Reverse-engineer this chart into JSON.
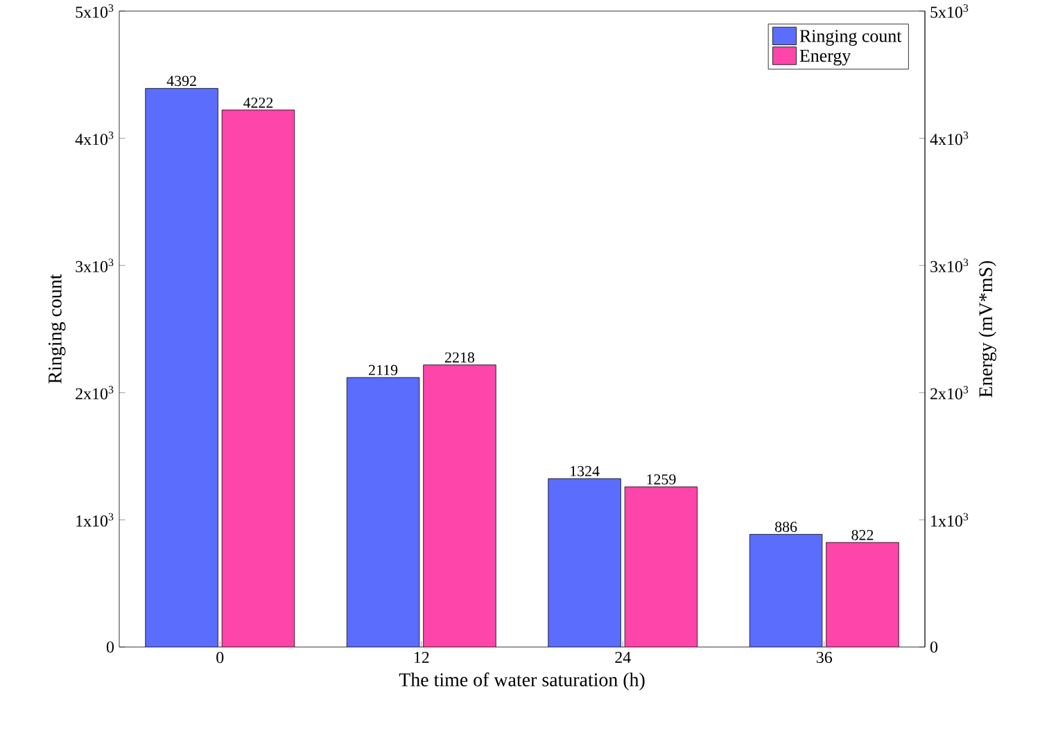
{
  "chart_data": {
    "type": "bar",
    "categories": [
      "0",
      "12",
      "24",
      "36"
    ],
    "xlabel": "The time of water saturation (h)",
    "ylabel": "Ringing count",
    "y2label": "Energy (mV*mS)",
    "series": [
      {
        "name": "Ringing count",
        "color": "#5b6dfd",
        "values": [
          4392,
          2119,
          1324,
          886
        ]
      },
      {
        "name": "Energy",
        "color": "#fe45a9",
        "values": [
          4222,
          2218,
          1259,
          822
        ],
        "axis": "y2"
      }
    ],
    "ylim": [
      0,
      5000
    ],
    "yticks": [
      0,
      {
        "value": 1000,
        "label": "1x10$^{3}$"
      },
      {
        "value": 2000,
        "label": "2x10$^{3}$"
      },
      {
        "value": 3000,
        "label": "3x10$^{3}$"
      },
      {
        "value": 4000,
        "label": "4x10$^{3}$"
      },
      {
        "value": 5000,
        "label": "5x10$^{3}$"
      }
    ],
    "y2lim": [
      0,
      5000
    ],
    "y2ticks": [
      0,
      {
        "value": 1000,
        "label": "1x10$^{3}$"
      },
      {
        "value": 2000,
        "label": "2x10$^{3}$"
      },
      {
        "value": 3000,
        "label": "3x10$^{3}$"
      },
      {
        "value": 4000,
        "label": "4x10$^{3}$"
      },
      {
        "value": 5000,
        "label": "5x10$^{3}$"
      }
    ],
    "data_labels": true,
    "legend": "top right"
  }
}
